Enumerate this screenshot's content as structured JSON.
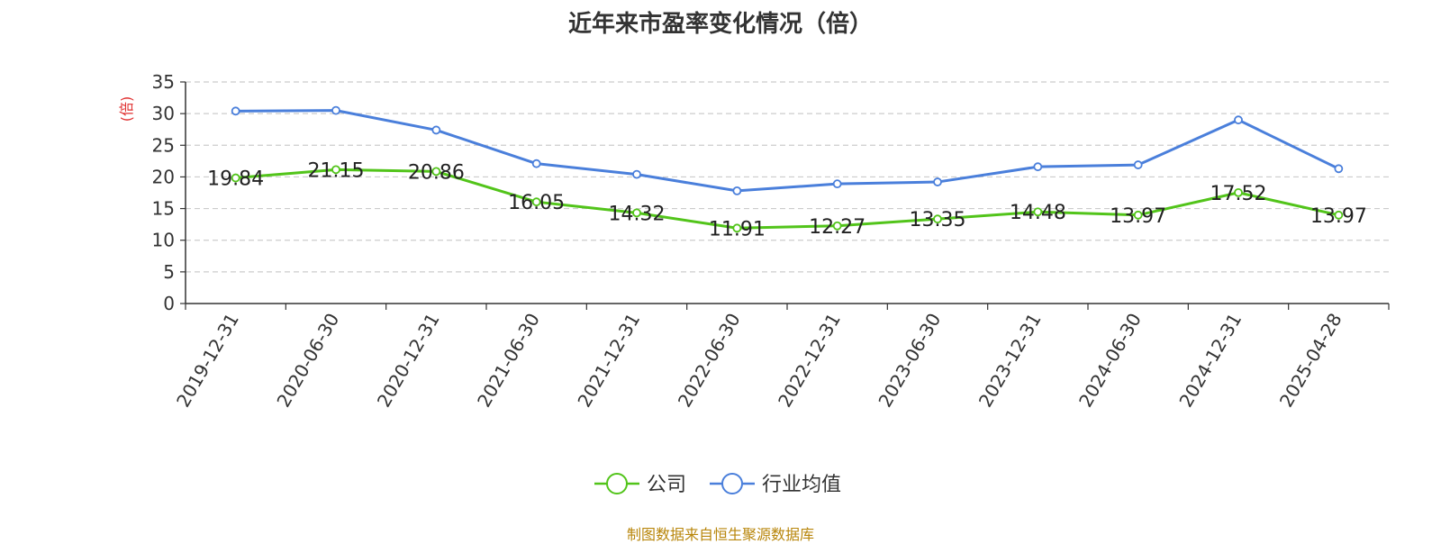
{
  "chart_data": {
    "type": "line",
    "title": "近年来市盈率变化情况（倍）",
    "ylabel": "(倍)",
    "xlabel": "",
    "ylim": [
      0,
      35
    ],
    "yticks": [
      0,
      5,
      10,
      15,
      20,
      25,
      30,
      35
    ],
    "grid": true,
    "legend_position": "bottom-center",
    "categories": [
      "2019-12-31",
      "2020-06-30",
      "2020-12-31",
      "2021-06-30",
      "2021-12-31",
      "2022-06-30",
      "2022-12-31",
      "2023-06-30",
      "2023-12-31",
      "2024-06-30",
      "2024-12-31",
      "2025-04-28"
    ],
    "series": [
      {
        "name": "公司",
        "color": "#52c41a",
        "values": [
          19.84,
          21.15,
          20.86,
          16.05,
          14.32,
          11.91,
          12.27,
          13.35,
          14.48,
          13.97,
          17.52,
          13.97
        ],
        "labels": [
          "19.84",
          "21.15",
          "20.86",
          "16.05",
          "14.32",
          "11.91",
          "12.27",
          "13.35",
          "14.48",
          "13.97",
          "17.52",
          "13.97"
        ]
      },
      {
        "name": "行业均值",
        "color": "#4a7fdb",
        "values": [
          30.4,
          30.5,
          27.4,
          22.1,
          20.4,
          17.8,
          18.9,
          19.2,
          21.6,
          21.9,
          29.0,
          21.3
        ]
      }
    ]
  },
  "footer": {
    "source": "制图数据来自恒生聚源数据库"
  }
}
